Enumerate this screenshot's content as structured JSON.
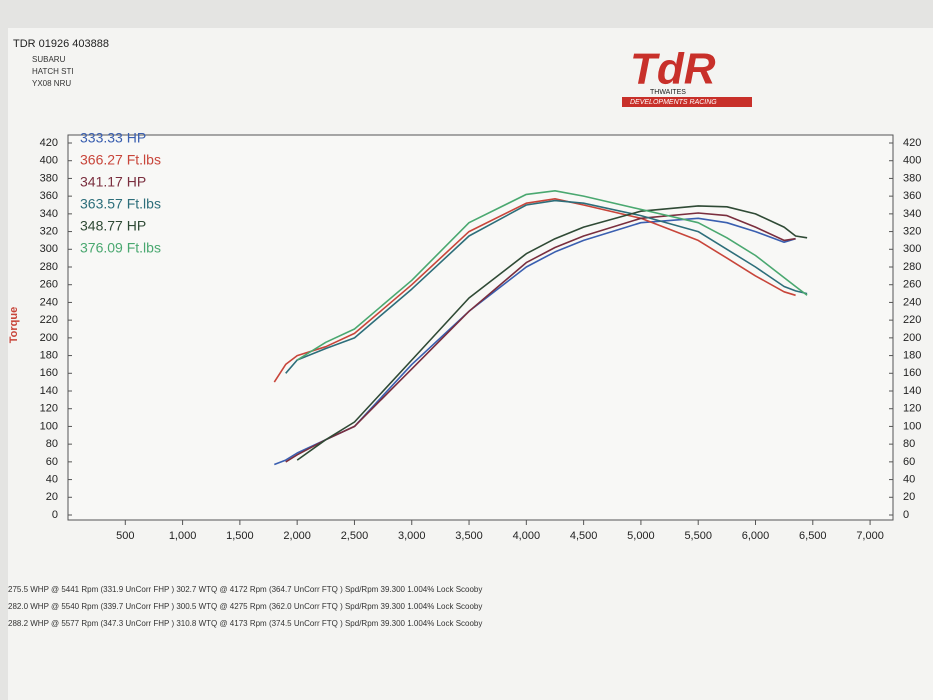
{
  "chart_data": {
    "type": "line",
    "header_lines": [
      "TDR 01926 403888",
      "SUBARU",
      "HATCH STI",
      "YX08 NRU"
    ],
    "logo": {
      "mark": "TdR",
      "line1": "THWAITES",
      "line2": "DEVELOPMENTS RACING"
    },
    "y_label": "Torque",
    "x": [
      1800,
      1900,
      2000,
      2250,
      2500,
      3000,
      3500,
      4000,
      4250,
      4500,
      5000,
      5500,
      5750,
      6000,
      6250,
      6350,
      6450
    ],
    "series": [
      {
        "name": "333.33 HP",
        "color": "#3a5fb0",
        "values": [
          57,
          62,
          70,
          85,
          100,
          170,
          230,
          280,
          297,
          310,
          330,
          335,
          330,
          320,
          308,
          312,
          null
        ]
      },
      {
        "name": "366.27 Ft.lbs",
        "color": "#c8453a",
        "values": [
          150,
          170,
          180,
          190,
          205,
          260,
          320,
          352,
          357,
          350,
          335,
          310,
          290,
          270,
          252,
          248,
          null
        ]
      },
      {
        "name": "341.17 HP",
        "color": "#7a2e3e",
        "values": [
          null,
          60,
          68,
          85,
          100,
          165,
          230,
          285,
          302,
          315,
          335,
          341,
          338,
          325,
          310,
          312,
          null
        ]
      },
      {
        "name": "363.57 Ft.lbs",
        "color": "#2d6e7a",
        "values": [
          null,
          160,
          175,
          188,
          200,
          255,
          315,
          350,
          355,
          352,
          338,
          320,
          300,
          280,
          258,
          253,
          250
        ]
      },
      {
        "name": "348.77 HP",
        "color": "#2f4a35",
        "values": [
          null,
          null,
          62,
          85,
          105,
          175,
          245,
          295,
          312,
          325,
          343,
          349,
          348,
          340,
          325,
          315,
          313
        ]
      },
      {
        "name": "376.09 Ft.lbs",
        "color": "#4aa870",
        "values": [
          null,
          null,
          175,
          195,
          210,
          265,
          330,
          362,
          366,
          360,
          345,
          330,
          313,
          293,
          268,
          258,
          248
        ]
      }
    ],
    "xlim": [
      0,
      7200
    ],
    "xticks": [
      500,
      {
        "value": 1000,
        "label": "1,000"
      },
      {
        "value": 1500,
        "label": "1,500"
      },
      {
        "value": 2000,
        "label": "2,000"
      },
      {
        "value": 2500,
        "label": "2,500"
      },
      {
        "value": 3000,
        "label": "3,000"
      },
      {
        "value": 3500,
        "label": "3,500"
      },
      {
        "value": 4000,
        "label": "4,000"
      },
      {
        "value": 4500,
        "label": "4,500"
      },
      {
        "value": 5000,
        "label": "5,000"
      },
      {
        "value": 5500,
        "label": "5,500"
      },
      {
        "value": 6000,
        "label": "6,000"
      },
      {
        "value": 6500,
        "label": "6,500"
      },
      {
        "value": 7000,
        "label": "7,000"
      }
    ],
    "ylim": [
      0,
      420
    ],
    "yticks": [
      0,
      20,
      40,
      60,
      80,
      100,
      120,
      140,
      160,
      180,
      200,
      220,
      240,
      260,
      280,
      300,
      320,
      340,
      360,
      380,
      400,
      420
    ],
    "y2lim": [
      0,
      420
    ],
    "y2ticks": [
      0,
      20,
      40,
      60,
      80,
      100,
      120,
      140,
      160,
      180,
      200,
      220,
      240,
      260,
      280,
      300,
      320,
      340,
      360,
      380,
      400,
      420
    ],
    "footer_lines": [
      "275.5 WHP @ 5441 Rpm (331.9 UnCorr FHP )  302.7 WTQ @ 4172 Rpm (364.7 UnCorr FTQ ) Spd/Rpm 39.300 1.004% Lock Scooby",
      "282.0 WHP @ 5540 Rpm (339.7 UnCorr FHP )  300.5 WTQ @ 4275 Rpm (362.0 UnCorr FTQ ) Spd/Rpm 39.300 1.004% Lock Scooby",
      "288.2 WHP @ 5577 Rpm (347.3 UnCorr FHP )  310.8 WTQ @ 4173 Rpm (374.5 UnCorr FTQ ) Spd/Rpm 39.300 1.004% Lock Scooby"
    ]
  }
}
